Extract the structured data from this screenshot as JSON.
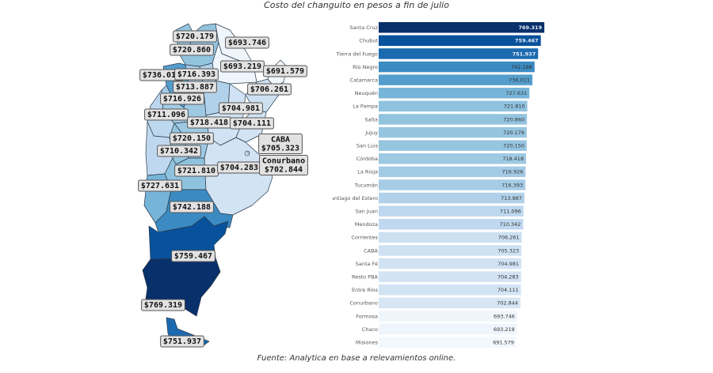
{
  "chart_data": [
    {
      "type": "choropleth-map",
      "title": "Costo del changuito en pesos a fin de julio",
      "currency_prefix": "$",
      "regions": [
        {
          "name": "Jujuy",
          "value": 720.179,
          "label": "$720.179"
        },
        {
          "name": "Formosa",
          "value": 693.746,
          "label": "$693.746"
        },
        {
          "name": "Salta",
          "value": 720.86,
          "label": "$720.860"
        },
        {
          "name": "Chaco",
          "value": 693.219,
          "label": "$693.219"
        },
        {
          "name": "Misiones",
          "value": 691.579,
          "label": "$691.579"
        },
        {
          "name": "Catamarca",
          "value": 736.011,
          "label": "$736.011"
        },
        {
          "name": "Tucumán",
          "value": 716.393,
          "label": "$716.393"
        },
        {
          "name": "Santiago del Estero",
          "value": 713.887,
          "label": "$713.887"
        },
        {
          "name": "Corrientes",
          "value": 706.261,
          "label": "$706.261"
        },
        {
          "name": "La Rioja",
          "value": 716.926,
          "label": "$716.926"
        },
        {
          "name": "Santa Fé",
          "value": 704.981,
          "label": "$704.981"
        },
        {
          "name": "San Juan",
          "value": 711.096,
          "label": "$711.096"
        },
        {
          "name": "Córdoba",
          "value": 718.418,
          "label": "$718.418"
        },
        {
          "name": "Entre Ríos",
          "value": 704.111,
          "label": "$704.111"
        },
        {
          "name": "San Luis",
          "value": 720.15,
          "label": "$720.150"
        },
        {
          "name": "Mendoza",
          "value": 710.342,
          "label": "$710.342"
        },
        {
          "name": "CABA",
          "value": 705.323,
          "label": "CABA\n$705.323"
        },
        {
          "name": "La Pampa",
          "value": 721.81,
          "label": "$721.810"
        },
        {
          "name": "Resto PBA",
          "value": 704.283,
          "label": "$704.283"
        },
        {
          "name": "Conurbano",
          "value": 702.844,
          "label": "Conurbano\n$702.844"
        },
        {
          "name": "Neuquén",
          "value": 727.631,
          "label": "$727.631"
        },
        {
          "name": "Río Negro",
          "value": 742.188,
          "label": "$742.188"
        },
        {
          "name": "Chubut",
          "value": 759.467,
          "label": "$759.467"
        },
        {
          "name": "Santa Cruz",
          "value": 769.319,
          "label": "$769.319"
        },
        {
          "name": "Tierra del Fuego",
          "value": 751.937,
          "label": "$751.937"
        }
      ],
      "color_scale": [
        "#f3f8fd",
        "#08306b"
      ]
    },
    {
      "type": "bar",
      "orientation": "horizontal",
      "categories": [
        "Santa Cruz",
        "Chubut",
        "Tierra del Fuego",
        "Río Negro",
        "Catamarca",
        "Neuquén",
        "La Pampa",
        "Salta",
        "Jujuy",
        "San Luis",
        "Córdoba",
        "La Rioja",
        "Tucumán",
        "Santiago del Estero",
        "San Juan",
        "Mendoza",
        "Corrientes",
        "CABA",
        "Santa Fé",
        "Resto PBA",
        "Entre Ríos",
        "Conurbano",
        "Formosa",
        "Chaco",
        "Misiones"
      ],
      "values": [
        769.319,
        759.467,
        751.937,
        742.188,
        736.011,
        727.631,
        721.81,
        720.86,
        720.179,
        720.15,
        718.418,
        716.926,
        716.393,
        713.887,
        711.096,
        710.342,
        706.261,
        705.323,
        704.981,
        704.283,
        704.111,
        702.844,
        693.746,
        693.219,
        691.579
      ],
      "value_labels": [
        "769.319",
        "759.467",
        "751.937",
        "742.188",
        "736.011",
        "727.631",
        "721.810",
        "720.860",
        "720.179",
        "720.150",
        "718.418",
        "716.926",
        "716.393",
        "713.887",
        "711.096",
        "710.342",
        "706.261",
        "705.323",
        "704.981",
        "704.283",
        "704.111",
        "702.844",
        "693.746",
        "693.219",
        "691.579"
      ],
      "xlabel": "",
      "ylabel": "",
      "xlim": [
        0,
        780
      ],
      "grid": false,
      "legend": "none",
      "color_scale": [
        "#f3f8fd",
        "#08306b"
      ]
    }
  ],
  "header": {
    "title": "Costo del changuito en pesos a fin de julio"
  },
  "footer": {
    "source": "Fuente: Analytica en base a relevamientos online."
  }
}
